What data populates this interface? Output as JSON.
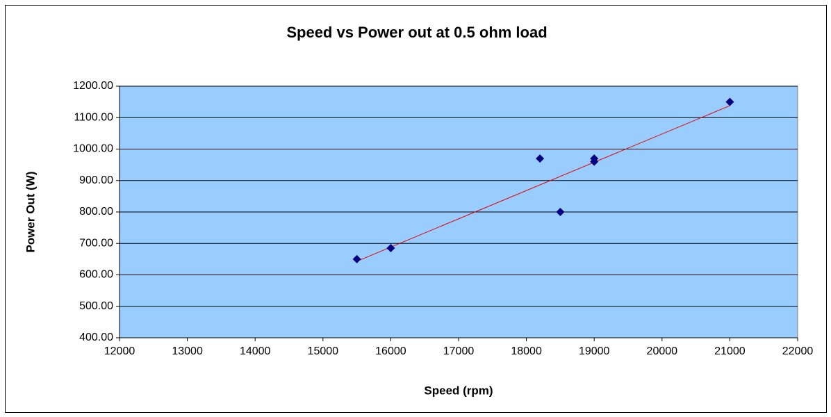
{
  "chart_data": {
    "type": "scatter",
    "title": "Speed vs Power out at 0.5 ohm load",
    "x_label": "Speed (rpm)",
    "y_label": "Power Out (W)",
    "series": [
      {
        "name": "Power Out (W)",
        "color": "#000080",
        "x": [
          15500,
          16000,
          18200,
          18500,
          19000,
          19000,
          21000
        ],
        "values": [
          650,
          685,
          970,
          800,
          970,
          960,
          1150
        ]
      }
    ],
    "trendline": "linear",
    "trendline_color": "#e00000",
    "xlim": [
      12000,
      22000
    ],
    "xticks": [
      12000,
      13000,
      14000,
      15000,
      16000,
      17000,
      18000,
      19000,
      20000,
      21000,
      22000
    ],
    "ylim": [
      400,
      1200
    ],
    "yticks": [
      {
        "value": 400,
        "label": "400.00"
      },
      {
        "value": 500,
        "label": "500.00"
      },
      {
        "value": 600,
        "label": "600.00"
      },
      {
        "value": 700,
        "label": "700.00"
      },
      {
        "value": 800,
        "label": "800.00"
      },
      {
        "value": 900,
        "label": "900.00"
      },
      {
        "value": 1000,
        "label": "1000.00"
      },
      {
        "value": 1100,
        "label": "1100.00"
      },
      {
        "value": 1200,
        "label": "1200.00"
      }
    ],
    "grid": true,
    "plot_background": "#99ccff"
  }
}
